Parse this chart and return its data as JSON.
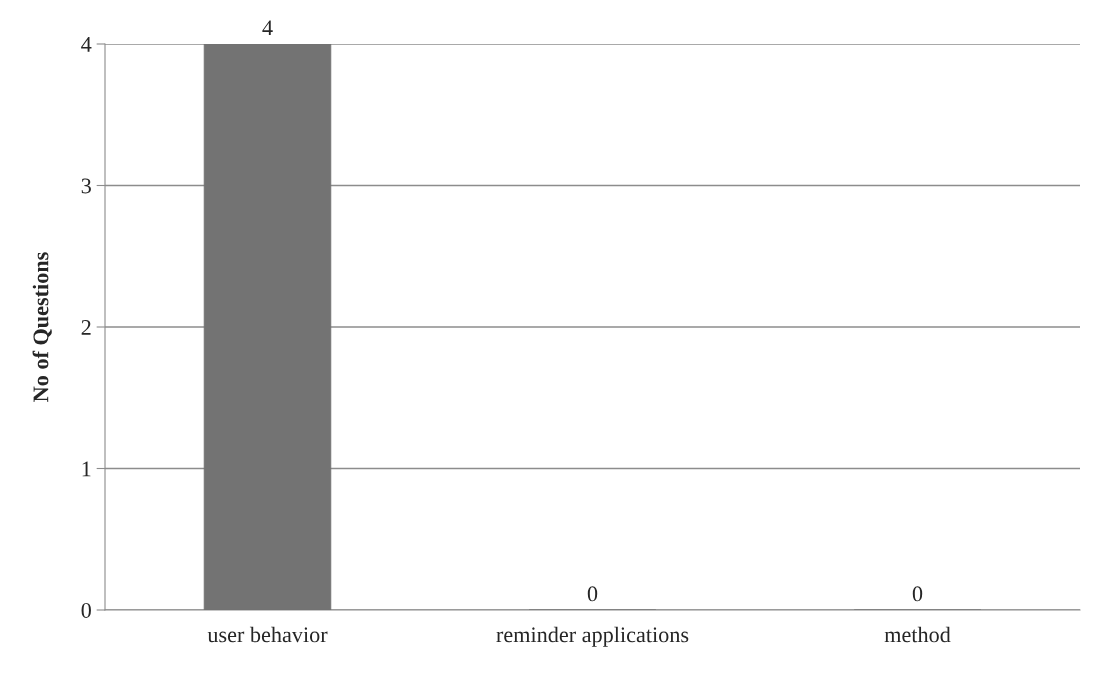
{
  "chart_data": {
    "type": "bar",
    "ylabel": "No of Questions",
    "categories": [
      "user behavior",
      "reminder applications",
      "method"
    ],
    "values": [
      4,
      0,
      0
    ],
    "color": "#737373",
    "ylim": [
      0,
      4
    ],
    "yticks": [
      0,
      1,
      2,
      3,
      4
    ],
    "grid": "y",
    "data_labels": true
  }
}
